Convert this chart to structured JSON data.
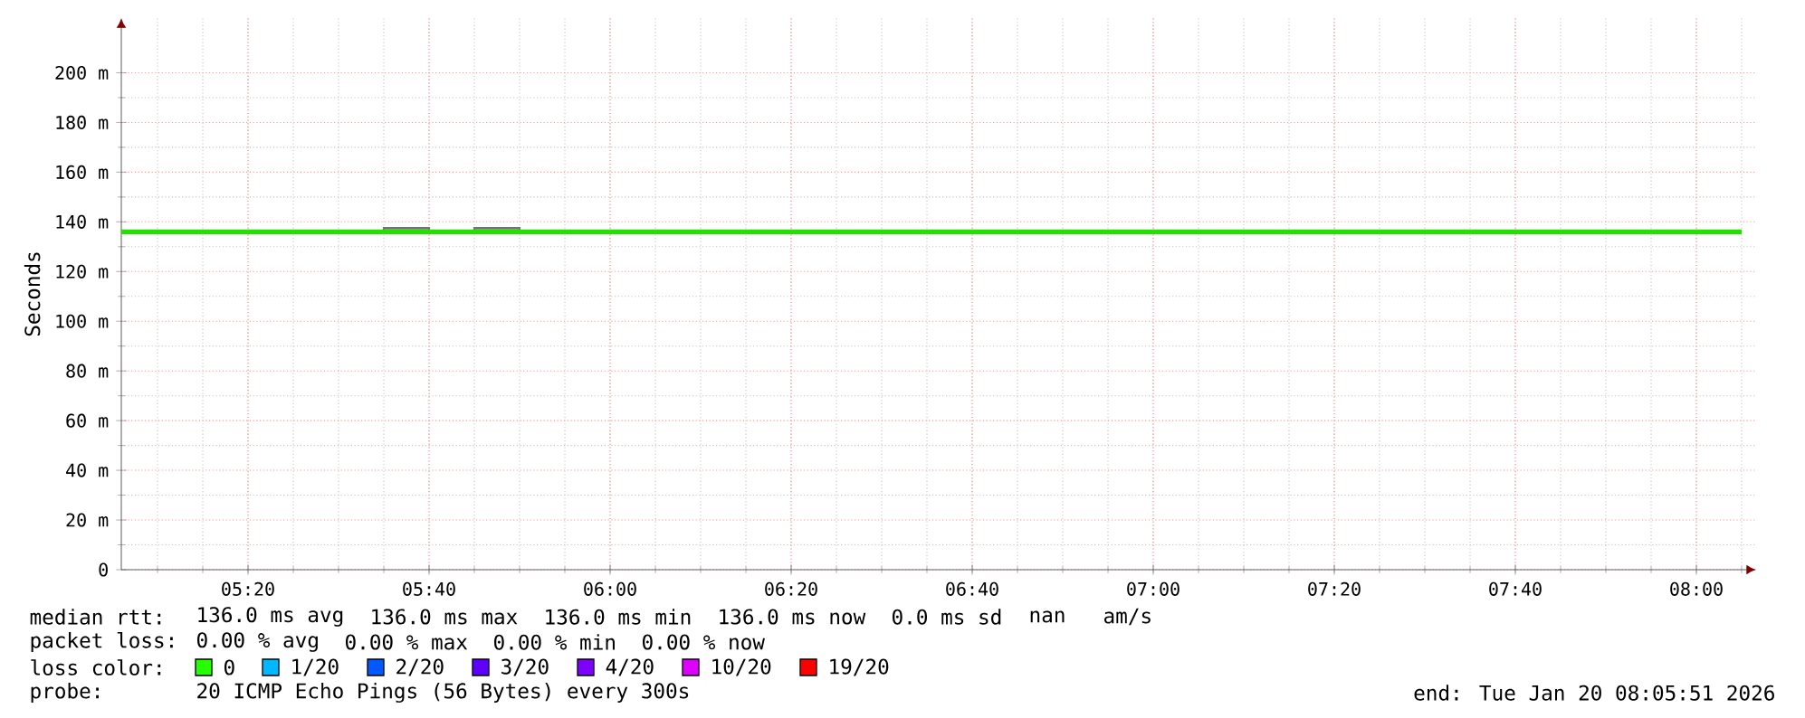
{
  "chart_data": {
    "type": "line",
    "ylabel": "Seconds",
    "xlim": [
      5.1,
      8.11
    ],
    "ylim": [
      0,
      222
    ],
    "xticks": [
      {
        "value": 5.333333,
        "label": "05:20"
      },
      {
        "value": 5.666667,
        "label": "05:40"
      },
      {
        "value": 6,
        "label": "06:00"
      },
      {
        "value": 6.333333,
        "label": "06:20"
      },
      {
        "value": 6.666667,
        "label": "06:40"
      },
      {
        "value": 7,
        "label": "07:00"
      },
      {
        "value": 7.333333,
        "label": "07:20"
      },
      {
        "value": 7.666667,
        "label": "07:40"
      },
      {
        "value": 8,
        "label": "08:00"
      }
    ],
    "yticks": [
      0,
      {
        "value": 20,
        "label": "20 m"
      },
      {
        "value": 40,
        "label": "40 m"
      },
      {
        "value": 60,
        "label": "60 m"
      },
      {
        "value": 80,
        "label": "80 m"
      },
      {
        "value": 100,
        "label": "100 m"
      },
      {
        "value": 120,
        "label": "120 m"
      },
      {
        "value": 140,
        "label": "140 m"
      },
      {
        "value": 160,
        "label": "160 m"
      },
      {
        "value": 180,
        "label": "180 m"
      },
      {
        "value": 200,
        "label": "200 m"
      }
    ],
    "grid": true,
    "marker": "none",
    "line_style": "solid",
    "series": [
      {
        "color": "#22e000",
        "x": [
          5.1,
          5.583333,
          5.583333,
          5.666667,
          5.666667,
          5.75,
          5.75,
          5.833333,
          5.833333,
          8.083333
        ],
        "values": [
          136,
          136,
          136,
          136,
          136,
          136,
          136,
          136,
          136,
          136
        ],
        "lower": [
          136,
          136,
          136,
          136,
          136,
          136,
          136,
          136,
          136,
          136
        ],
        "upper": [
          136,
          136,
          137.5,
          137.5,
          136,
          136,
          137.5,
          137.5,
          136,
          136
        ]
      }
    ],
    "annotations": [
      "median rtt:",
      "136.0 ms avg",
      "136.0 ms max",
      "136.0 ms min",
      "136.0 ms now",
      "0.0 ms sd",
      "nan",
      "am/s",
      "packet loss:",
      "0.00 % avg",
      "0.00 % max",
      "0.00 % min",
      "0.00 % now",
      "loss color:",
      "0",
      "1/20",
      "2/20",
      "3/20",
      "4/20",
      "10/20",
      "19/20",
      "probe:",
      "20 ICMP Echo Pings (56 Bytes) every 300s",
      "end: Tue Jan 20 08:05:51 2026"
    ]
  }
}
